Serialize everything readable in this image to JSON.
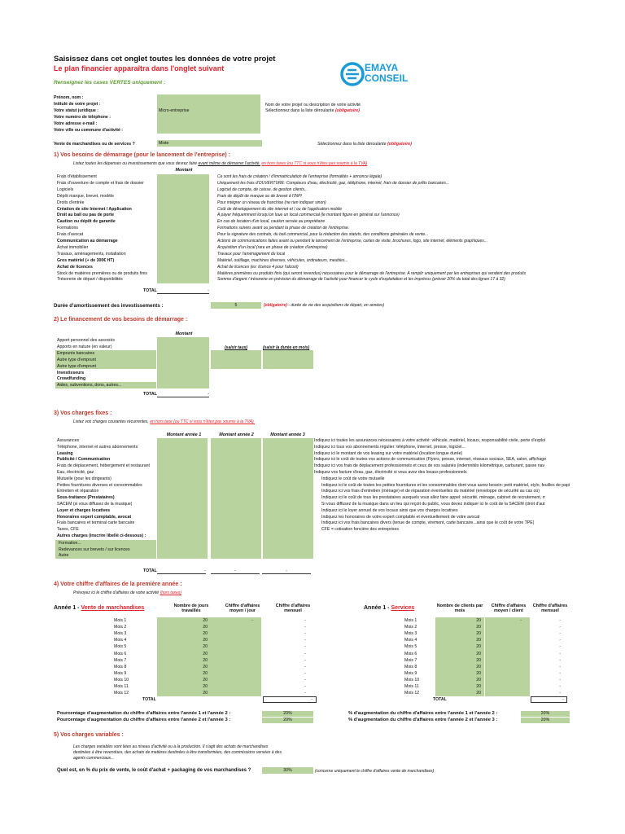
{
  "header": {
    "title": "Saisissez dans cet onglet toutes les données de votre projet",
    "subtitle": "Le plan financier apparaîtra dans l'onglet suivant",
    "instruction": "Renseignez les cases VERTES uniquement :",
    "logo_line1": "EMAYA",
    "logo_line2": "CONSEIL"
  },
  "identity": {
    "fields": [
      "Prénom, nom :",
      "Intitulé de votre projet :",
      "Votre statut juridique :",
      "Votre numéro de téléphone :",
      "Votre adresse e-mail :",
      "Votre ville ou commune d'activité :"
    ],
    "statut_value": "Micro-entreprise",
    "note1": "Nom de votre projet ou description de votre activité",
    "note2": "Sélectionnez dans la liste déroulante",
    "note2_red": "(obligatoire)",
    "vente_label": "Vente de marchandises ou de services ?",
    "vente_value": "Mixte",
    "vente_note": "Sélectionnez dans la liste déroulante",
    "vente_note_red": "(obligatoire)"
  },
  "section1": {
    "title": "1) Vos besoins de démarrage (pour le lancement de l'entreprise) :",
    "intro_a": "Listez toutes les dépenses ou investissements que vous devrez faire",
    "intro_b": "avant même de démarrer l'activité,",
    "intro_c": "en hors taxes (ou TTC si vous n'êtes pas soumis à la TVA)",
    "col": "Montant",
    "rows": [
      {
        "label": "Frais d'établissement",
        "desc": "Ce sont les frais de création / d'immatriculation de l'entreprise (formalités + annonce légale)",
        "bold": false
      },
      {
        "label": "Frais d'ouverture de compte et frais de dossier",
        "desc": "Uniquement les frais d'OUVERTURE: Compteurs d'eau, électricité, gaz, téléphone, internet, frais de dossier de prêts bancaires...",
        "bold": false
      },
      {
        "label": "Logiciels",
        "desc": "Logiciel de compta, de caisse, de gestion clients...",
        "bold": false
      },
      {
        "label": "Dépôt marque, brevet, modèle",
        "desc": "Frais de dépôt de marque ou de brevet à l'INPI",
        "bold": false
      },
      {
        "label": "Droits d'entrée",
        "desc": "Pour intégrer un réseau de franchise (ne rien indiquer sinon)",
        "bold": false
      },
      {
        "label": "Création de site Internet / Application",
        "desc": "Coût de développement du site internet et / ou de l'application mobile",
        "bold": true
      },
      {
        "label": "Droit au bail ou pas de porte",
        "desc": "A payer fréquemment lorsqu'on loue un local commercial (le montant figure en général sur l'annonce)",
        "bold": true
      },
      {
        "label": "Caution ou dépôt de garantie",
        "desc": "En cas de location d'un local, caution versée au propriétaire",
        "bold": true
      },
      {
        "label": "Formations",
        "desc": "Formations suivies avant ou pendant la phase de création de l'entreprise.",
        "bold": false
      },
      {
        "label": "Frais d'avocat",
        "desc": "Pour la signature des contrats, du bail commercial, pour la rédaction des statuts, des conditions générales de vente...",
        "bold": false
      },
      {
        "label": "Communication au démarrage",
        "desc": "Actions de communications faites avant ou pendant le lancement de l'entreprise, cartes de visite, brochures, logo, site internet, éléments graphiques...",
        "bold": true
      },
      {
        "label": "Achat immobilier",
        "desc": "Acquisition d'un local (rare en phase de création d'entreprise)",
        "bold": false
      },
      {
        "label": "Travaux, aménagements, installation",
        "desc": "Travaux pour l'aménagement du local",
        "bold": false
      },
      {
        "label": "Gros matériel (+ de 300€ HT)",
        "desc": "Matériel, outillage, machines diverses, véhicules, ordinateurs, meubles...",
        "bold": true
      },
      {
        "label": "Achat de licences",
        "desc": "Achat de licences (ex: licence 4 pour l'alcool)",
        "bold": true
      },
      {
        "label": "Stock de matières premières ou de produits finis",
        "desc": "Matières premières ou produits finis (qui seront revendus) nécessaires pour le démarrage de l'entreprise. A remplir uniquement par les entreprises qui vendent des produits",
        "bold": false
      },
      {
        "label": "Trésorerie de départ / disponibilités",
        "desc": "Somme d'argent / trésorerie en prévision du démarrage de l'activité pour financer le cycle d'exploitation et les imprévus (prévoir 20% du total des lignes 17 à 32)",
        "bold": false
      }
    ],
    "total_label": "TOTAL",
    "total_value": "-",
    "duree_label": "Durée d'amortissement des investissements :",
    "duree_value": "5",
    "duree_red": "(obligatoire)",
    "duree_note": "- durée de vie des acquisitions de départ, en années)"
  },
  "section2": {
    "title": "2) Le financement de vos besoins de démarrage :",
    "col": "Montant",
    "note_taux": "(saisir taux)",
    "note_duree": "(saisir la durée en mois)",
    "rows": [
      {
        "label": "Apport personnel des associés",
        "green": false,
        "bold": false
      },
      {
        "label": "Apports en nature (en valeur)",
        "green": false,
        "bold": false
      },
      {
        "label": "Emprunts bancaires",
        "green": true,
        "bold": false
      },
      {
        "label": "Autre type d'emprunt",
        "green": true,
        "bold": false
      },
      {
        "label": "Autre type d'emprunt",
        "green": true,
        "bold": false
      },
      {
        "label": "Investisseurs",
        "green": false,
        "bold": true
      },
      {
        "label": "Crowdfunding",
        "green": false,
        "bold": true
      },
      {
        "label": "Aides, subventions, dons, autres...",
        "green": true,
        "bold": false
      }
    ],
    "total_label": "TOTAL",
    "total_value": "-"
  },
  "section3": {
    "title": "3) Vos charges fixes :",
    "intro_a": "Listez vos charges courantes récurrentes,",
    "intro_b": "en hors taxe (ou TTC si vous n'êtes pas soumis à la TVA).",
    "cols": [
      "Montant année 1",
      "Montant année 2",
      "Montant année 3"
    ],
    "rows": [
      {
        "label": "Assurances",
        "desc": "Indiquez ici toutes les assurances nécessaires à votre activité: véhicule, matériel, locaux, responsabilité civile, perte d'exploi",
        "bold": false
      },
      {
        "label": "Téléphone, internet et autres abonnements",
        "desc": "Indiquez ici tous vos abonnements régulier: téléphone, internet, presse, logiciel...",
        "bold": false
      },
      {
        "label": "Leasing",
        "desc": "Indiquez ici le montant de vos leasing sur votre matériel (location longue durée)",
        "bold": true
      },
      {
        "label": "Publicité / Communication",
        "desc": "Indiquez ici le coût de toutes vos actions de communication (Flyers, presse, internet, réseaux sociaux, SEA, salon, affichage",
        "bold": true
      },
      {
        "label": "Frais de déplacement, hébergement et restaurant",
        "desc": "Indiquez ici vos frais de déplacement professionnels et ceux de vos salariés (indemnités kilométrique, carburant, passe nav",
        "bold": false
      },
      {
        "label": "Eau, électricité, gaz",
        "desc": "Indiquez vos facture d'eau, gaz, électricité si vous avez des locaux professionnels",
        "bold": false
      },
      {
        "label": "Mutuelle (pour les dirigeants)",
        "desc": "Indiquez le coût de votre mutuelle",
        "bold": false
      },
      {
        "label": "Petites fournitures diverses et consommables",
        "desc": "Indiquez ici le coût de toutes les petites fournitures et les consommables dont vous aurez besoin: petit matériel, stylo, feuilles de papier, car",
        "bold": false
      },
      {
        "label": "Entretien et réparation",
        "desc": "Indiquez ici vos frais d'entretien (ménage) et de réparation éventuelles du matériel (enveloppe de sécurité au cas où)",
        "bold": false
      },
      {
        "label": "Sous-traitance (Prestataires)",
        "desc": "Indiquez ici le coût de tous les prestataires auxquels vous allez faire appel: sécurité, ménage, cabinet de recrutement, rr",
        "bold": true
      },
      {
        "label": "SACEM (si vous diffusez de la musique)",
        "desc": "Si vous diffusez de la musique dans un lieu qui reçoit du public, vous devez indiquer ici le coût de la SACEM (droit d'aut",
        "bold": false
      },
      {
        "label": "Loyer et charges locatives",
        "desc": "Indiquez ici le loyer annuel de vos locaux ainsi que vos charges locatives",
        "bold": true
      },
      {
        "label": "Honoraires expert comptable, avocat",
        "desc": "Indiquez les honoraires de votre expert comptable et éventuellement de votre avocat",
        "bold": true
      },
      {
        "label": "Frais bancaires et terminal carte bancaire",
        "desc": "Indiquez ici vos frais bancaires divers (tenue de compte, virement, carte bancaire...ainsi que le coût de votre TPE)",
        "bold": false
      },
      {
        "label": "Taxes, CFE",
        "desc": "CFE = cotisation foncière des entreprises",
        "bold": false
      }
    ],
    "autres_label": "Autres charges (inscrire libellé ci-dessous) :",
    "autres_rows": [
      "Formation...",
      "Redevances sur brevets / sur licences",
      "Autre"
    ],
    "total_label": "TOTAL",
    "total_values": [
      "-",
      "-",
      "-"
    ]
  },
  "section4": {
    "title": "4) Votre chiffre d'affaires de la première année :",
    "intro_a": "Prévoyez ici le chiffre d'affaires de votre activité",
    "intro_b": "(hors taxes)",
    "left": {
      "heading": "Année 1 -",
      "heading_red": "Vente de marchandises",
      "cols": [
        "Nombre de jours travaillés",
        "Chiffre d'affaires moyen / jour",
        "Chiffre d'affaires mensuel"
      ],
      "months": [
        "Mois 1",
        "Mois 2",
        "Mois 3",
        "Mois 4",
        "Mois 5",
        "Mois 6",
        "Mois 7",
        "Mois 8",
        "Mois 9",
        "Mois 10",
        "Mois 11",
        "Mois 12"
      ],
      "days": [
        "20",
        "20",
        "20",
        "20",
        "20",
        "20",
        "20",
        "20",
        "20",
        "20",
        "20",
        "20"
      ],
      "avg_first": "-",
      "monthly": [
        "-",
        "-",
        "-",
        "-",
        "-",
        "-",
        "-",
        "-",
        "-",
        "-",
        "-",
        "-"
      ],
      "total_label": "TOTAL",
      "total_value": "-"
    },
    "right": {
      "heading": "Année 1 -",
      "heading_red": "Services",
      "cols": [
        "Nombre de clients par mois",
        "Chiffre d'affaires moyen / client",
        "Chiffre d'affaires mensuel"
      ],
      "months": [
        "Mois 1",
        "Mois 2",
        "Mois 3",
        "Mois 4",
        "Mois 5",
        "Mois 6",
        "Mois 7",
        "Mois 8",
        "Mois 9",
        "Mois 10",
        "Mois 11",
        "Mois 12"
      ],
      "clients": [
        "20",
        "20",
        "20",
        "20",
        "20",
        "20",
        "20",
        "20",
        "20",
        "20",
        "20",
        "20"
      ],
      "avg_first": "-",
      "monthly": [
        "-",
        "-",
        "-",
        "-",
        "-",
        "-",
        "-",
        "-",
        "-",
        "-",
        "-",
        "-"
      ],
      "total_label": "TOTAL",
      "total_value": "-"
    },
    "pct_left": [
      "Pourcentage d'augmentation du chiffre d'affaires entre l'année 1 et l'année 2 :",
      "Pourcentage d'augmentation du chiffre d'affaires entre l'année 2 et l'année 3 :"
    ],
    "pct_left_values": [
      "20%",
      "20%"
    ],
    "pct_right": [
      "% d'augmentation du chiffre d'affaires entre l'année 1 et l'année 2 :",
      "% d'augmentation du chiffre d'affaires entre l'année 2 et l'année 3 :"
    ],
    "pct_right_values": [
      "20%",
      "20%"
    ]
  },
  "section5": {
    "title": "5) Vos charges variables :",
    "desc_lines": [
      "Les charges variables sont liées au niveau d'activité ou à la production. Il s'agit des achats de marchandises",
      "destinées à être revendues, des achats de matières destinées à être transformées, des commissions versées à des",
      "agents commerciaux..."
    ],
    "question": "Quel est, en % du prix de vente, le coût d'achat + packaging de vos marchandises ?",
    "value": "30%",
    "note": "(concerne uniquement le chiffre d'affaires vente de marchandises)"
  },
  "colors": {
    "green_cell": "#b9d39e",
    "red_text": "#e4202a",
    "logo_blue": "#1a9bd7"
  }
}
